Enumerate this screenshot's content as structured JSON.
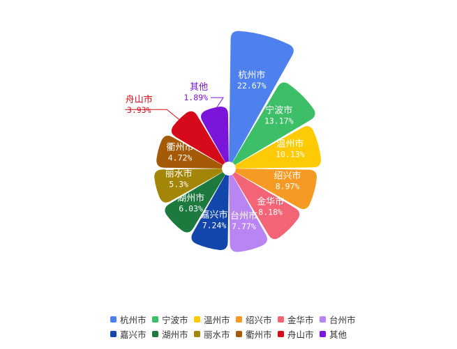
{
  "chart_data": {
    "type": "pie",
    "variant": "nightingale-rose",
    "title": "",
    "categories": [
      "杭州市",
      "宁波市",
      "温州市",
      "绍兴市",
      "金华市",
      "台州市",
      "嘉兴市",
      "湖州市",
      "丽水市",
      "衢州市",
      "舟山市",
      "其他"
    ],
    "values": [
      22.67,
      13.17,
      10.13,
      8.97,
      8.18,
      7.77,
      7.24,
      6.03,
      5.3,
      4.72,
      3.93,
      1.89
    ],
    "labels": [
      "22.67%",
      "13.17%",
      "10.13%",
      "8.97%",
      "8.18%",
      "7.77%",
      "7.24%",
      "6.03%",
      "5.3%",
      "4.72%",
      "3.93%",
      "1.89%"
    ],
    "colors": [
      "#4E80EE",
      "#3DBF67",
      "#FCCB05",
      "#F59A23",
      "#F46477",
      "#B885F2",
      "#1346AA",
      "#1C7A3E",
      "#A38608",
      "#A45A07",
      "#D50A1A",
      "#7A15D9"
    ],
    "legend_position": "bottom"
  }
}
